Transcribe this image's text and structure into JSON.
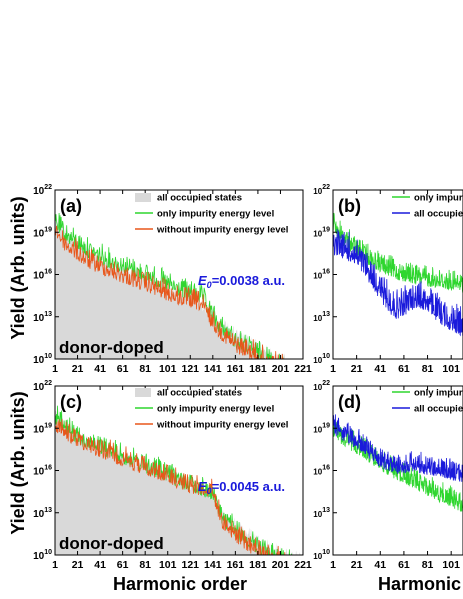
{
  "figure": {
    "ylabel": "Yield (Arb. units)",
    "xlabel_left": "Harmonic order",
    "xlabel_right": "Harmonic order",
    "colors": {
      "occupied": "#d9d9d9",
      "impurity": "#2fd62f",
      "without": "#e8561a",
      "blue": "#1a1adb"
    }
  },
  "chart_data": [
    {
      "id": "a",
      "type": "area",
      "panel_label": "(a)",
      "annotation": "donor-doped",
      "field_label": "E0=0.0038 a.u.",
      "field_symbol": "E",
      "field_sub": "0",
      "field_value": "=0.0038 a.u.",
      "xlim": [
        1,
        221
      ],
      "xticks": [
        1,
        21,
        41,
        61,
        81,
        101,
        121,
        141,
        161,
        181,
        201,
        221
      ],
      "yscale": "log",
      "ylim_exp": [
        10,
        22
      ],
      "yticks_exp": [
        10,
        13,
        16,
        19,
        22
      ],
      "legend": [
        "all occupied states",
        "only impurity energy level",
        "without impurity energy level"
      ],
      "series": [
        {
          "name": "all occupied states",
          "kind": "fill",
          "envelope_x": [
            1,
            10,
            30,
            50,
            80,
            110,
            130,
            145,
            160,
            175,
            190,
            205,
            212
          ],
          "envelope_y": [
            20.5,
            19.5,
            18.2,
            17.3,
            16.4,
            15.3,
            14.5,
            13.3,
            12.3,
            11.6,
            11.0,
            10.4,
            10.0
          ]
        },
        {
          "name": "only impurity energy level",
          "kind": "line",
          "envelope_x": [
            1,
            10,
            30,
            50,
            80,
            110,
            130,
            145,
            160,
            175,
            190,
            205,
            212
          ],
          "envelope_y": [
            20.8,
            19.9,
            18.8,
            18.0,
            17.1,
            16.0,
            15.5,
            13.6,
            12.4,
            11.7,
            11.1,
            10.4,
            10.0
          ]
        },
        {
          "name": "without impurity energy level",
          "kind": "line",
          "envelope_x": [
            1,
            10,
            30,
            50,
            80,
            110,
            130,
            145,
            160,
            175,
            190,
            205,
            212
          ],
          "envelope_y": [
            20.3,
            19.2,
            18.0,
            17.3,
            16.4,
            15.4,
            15.0,
            13.2,
            12.1,
            11.5,
            11.0,
            10.4,
            10.0
          ]
        }
      ]
    },
    {
      "id": "b",
      "type": "line",
      "panel_label": "(b)",
      "xlim": [
        1,
        111
      ],
      "xticks": [
        1,
        21,
        41,
        61,
        81,
        101
      ],
      "yscale": "log",
      "ylim_exp": [
        10,
        22
      ],
      "yticks_exp": [
        10,
        13,
        16,
        19,
        22
      ],
      "legend": [
        "only impurity energy level",
        "all occupied states"
      ],
      "series": [
        {
          "name": "only impurity energy level",
          "kind": "line",
          "envelope_x": [
            1,
            10,
            25,
            40,
            55,
            70,
            90,
            111
          ],
          "envelope_y": [
            20.5,
            19.6,
            18.6,
            17.8,
            17.2,
            16.9,
            16.6,
            16.3
          ]
        },
        {
          "name": "all occupied states",
          "kind": "line",
          "envelope_x": [
            1,
            10,
            20,
            30,
            40,
            48,
            55,
            62,
            70,
            80,
            90,
            100,
            111
          ],
          "envelope_y": [
            19.6,
            19.3,
            18.8,
            17.8,
            16.5,
            15.5,
            15.0,
            15.3,
            15.8,
            15.6,
            14.8,
            14.2,
            13.8
          ]
        }
      ]
    },
    {
      "id": "c",
      "type": "area",
      "panel_label": "(c)",
      "annotation": "donor-doped",
      "field_label": "E0=0.0045 a.u.",
      "field_symbol": "E",
      "field_sub": "0",
      "field_value": "=0.0045 a.u.",
      "xlim": [
        1,
        221
      ],
      "xticks": [
        1,
        21,
        41,
        61,
        81,
        101,
        121,
        141,
        161,
        181,
        201,
        221
      ],
      "yscale": "log",
      "ylim_exp": [
        10,
        22
      ],
      "yticks_exp": [
        10,
        13,
        16,
        19,
        22
      ],
      "legend": [
        "all occupied states",
        "only impurity energy level",
        "without impurity energy level"
      ],
      "series": [
        {
          "name": "all occupied states",
          "kind": "fill",
          "envelope_x": [
            1,
            10,
            30,
            60,
            90,
            120,
            140,
            150,
            165,
            180,
            195,
            210,
            221
          ],
          "envelope_y": [
            20.4,
            19.6,
            18.7,
            17.6,
            16.6,
            15.6,
            14.9,
            13.3,
            12.4,
            11.6,
            11.0,
            10.5,
            10.1
          ]
        },
        {
          "name": "only impurity energy level",
          "kind": "line",
          "envelope_x": [
            1,
            10,
            30,
            60,
            90,
            120,
            140,
            150,
            165,
            180,
            195,
            210,
            221
          ],
          "envelope_y": [
            20.9,
            20.0,
            19.1,
            18.1,
            17.1,
            16.1,
            15.5,
            13.6,
            12.5,
            11.7,
            11.0,
            10.4,
            10.0
          ]
        },
        {
          "name": "without impurity energy level",
          "kind": "line",
          "envelope_x": [
            1,
            10,
            30,
            60,
            90,
            120,
            140,
            150,
            165,
            180,
            195,
            210,
            221
          ],
          "envelope_y": [
            20.4,
            19.7,
            18.9,
            17.9,
            17.0,
            16.0,
            15.6,
            13.4,
            12.2,
            11.4,
            10.8,
            10.3,
            10.0
          ]
        }
      ]
    },
    {
      "id": "d",
      "type": "line",
      "panel_label": "(d)",
      "xlim": [
        1,
        111
      ],
      "xticks": [
        1,
        21,
        41,
        61,
        81,
        101
      ],
      "yscale": "log",
      "ylim_exp": [
        10,
        22
      ],
      "yticks_exp": [
        10,
        13,
        16,
        19,
        22
      ],
      "legend": [
        "only impurity energy level",
        "all occupied states"
      ],
      "series": [
        {
          "name": "only impurity energy level",
          "kind": "line",
          "envelope_x": [
            1,
            10,
            25,
            40,
            55,
            70,
            90,
            111
          ],
          "envelope_y": [
            20.0,
            19.3,
            18.6,
            17.6,
            16.9,
            16.3,
            15.4,
            14.6
          ]
        },
        {
          "name": "all occupied states",
          "kind": "line",
          "envelope_x": [
            1,
            10,
            25,
            40,
            55,
            70,
            90,
            111
          ],
          "envelope_y": [
            20.2,
            19.6,
            18.9,
            17.8,
            17.3,
            17.5,
            17.1,
            16.7
          ]
        }
      ]
    }
  ]
}
